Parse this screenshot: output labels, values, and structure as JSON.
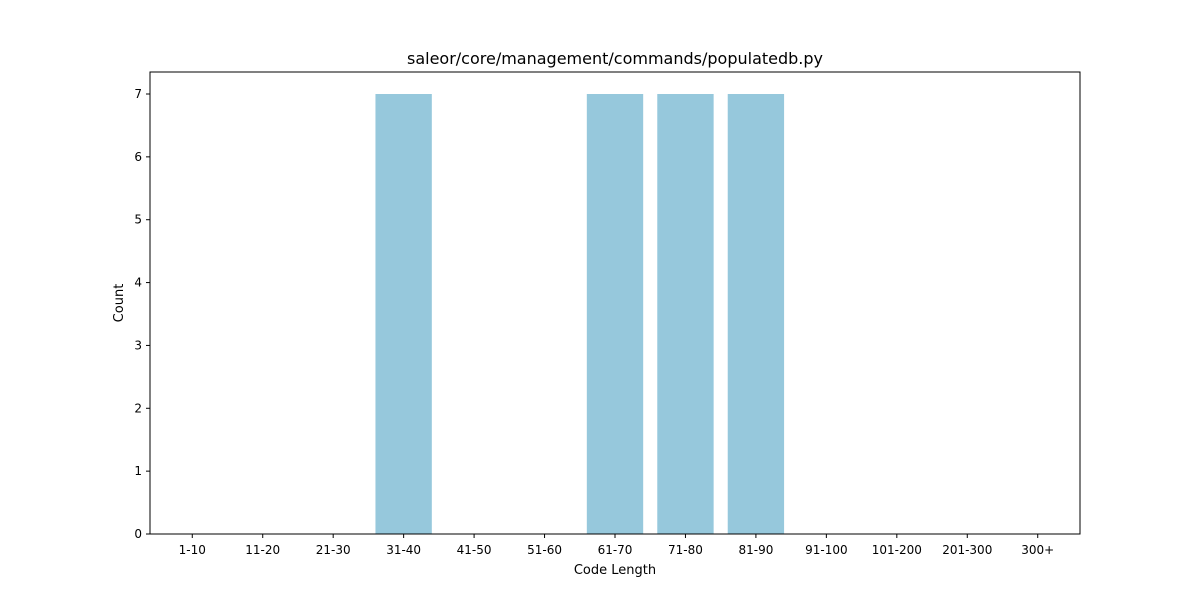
{
  "chart_data": {
    "type": "bar",
    "title": "saleor/core/management/commands/populatedb.py",
    "xlabel": "Code Length",
    "ylabel": "Count",
    "categories": [
      "1-10",
      "11-20",
      "21-30",
      "31-40",
      "41-50",
      "51-60",
      "61-70",
      "71-80",
      "81-90",
      "91-100",
      "101-200",
      "201-300",
      "300+"
    ],
    "values": [
      0,
      0,
      0,
      7,
      0,
      0,
      7,
      7,
      7,
      0,
      0,
      0,
      0
    ],
    "ylim": [
      0,
      7.35
    ],
    "yticks": [
      0,
      1,
      2,
      3,
      4,
      5,
      6,
      7
    ],
    "bar_color": "#96c8dc",
    "grid": false
  }
}
